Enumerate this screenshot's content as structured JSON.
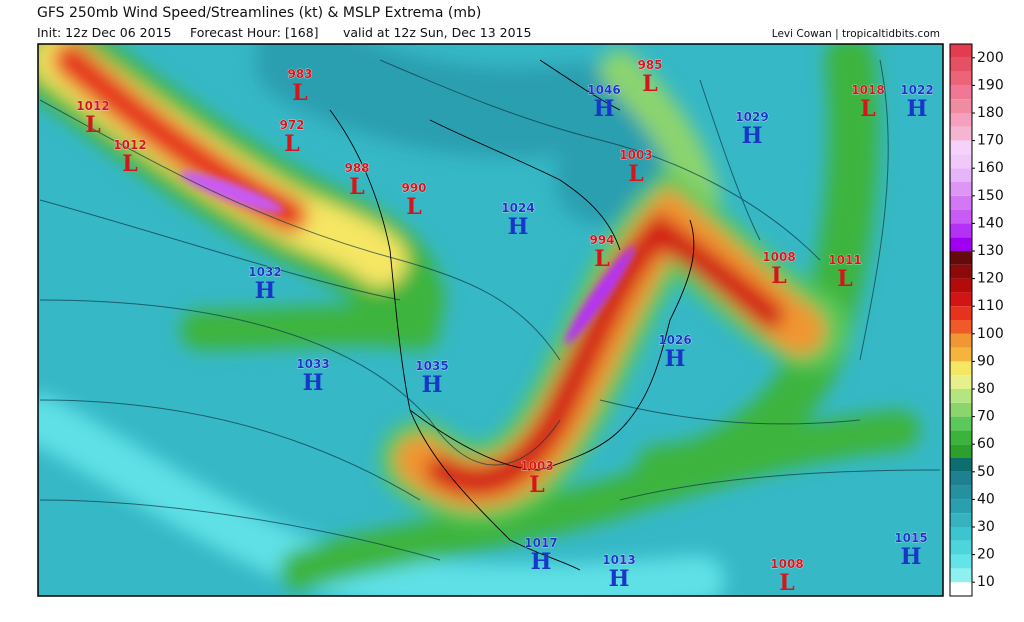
{
  "header": {
    "title": "GFS 250mb Wind Speed/Streamlines (kt) & MSLP Extrema (mb)",
    "init": "Init: 12z Dec 06 2015",
    "forecast": "Forecast Hour: [168]",
    "valid": "valid at 12z Sun, Dec 13 2015",
    "credit": "Levi Cowan | tropicaltidbits.com"
  },
  "colorbar": {
    "lim": [
      5,
      205
    ],
    "ticks": [
      10,
      20,
      30,
      40,
      50,
      60,
      70,
      80,
      90,
      100,
      110,
      120,
      130,
      140,
      150,
      160,
      170,
      180,
      190,
      200
    ],
    "colors": [
      "#ffffff",
      "#8ff0f0",
      "#62e4e8",
      "#4cd6dc",
      "#3bc6cf",
      "#36b3bf",
      "#2aa0af",
      "#2590a0",
      "#1e8090",
      "#0e6e6e",
      "#2ca02c",
      "#3cb43c",
      "#5ac85a",
      "#8cd46e",
      "#b4e67f",
      "#e6f08c",
      "#f5e664",
      "#f5b43c",
      "#f09632",
      "#f05a28",
      "#e6321e",
      "#d21414",
      "#b40a0a",
      "#8c0a0a",
      "#640a0a",
      "#a000f0",
      "#b432f5",
      "#c85af5",
      "#d278f5",
      "#dc96f5",
      "#e6b4f8",
      "#f0c8fa",
      "#f5d2fa",
      "#f5b4d2",
      "#f5a0be",
      "#f08ca0",
      "#f07896",
      "#eb6478",
      "#e65064",
      "#e13c50"
    ]
  },
  "centers": [
    {
      "value": "1012",
      "type": "L"
    },
    {
      "value": "1012",
      "type": "L"
    },
    {
      "value": "983",
      "type": "L"
    },
    {
      "value": "972",
      "type": "L"
    },
    {
      "value": "988",
      "type": "L"
    },
    {
      "value": "990",
      "type": "L"
    },
    {
      "value": "1024",
      "type": "H"
    },
    {
      "value": "1032",
      "type": "H"
    },
    {
      "value": "1033",
      "type": "H"
    },
    {
      "value": "1035",
      "type": "H"
    },
    {
      "value": "1046",
      "type": "H"
    },
    {
      "value": "985",
      "type": "L"
    },
    {
      "value": "1003",
      "type": "L"
    },
    {
      "value": "994",
      "type": "L"
    },
    {
      "value": "1029",
      "type": "H"
    },
    {
      "value": "1018",
      "type": "L"
    },
    {
      "value": "1022",
      "type": "H"
    },
    {
      "value": "1008",
      "type": "L"
    },
    {
      "value": "1011",
      "type": "L"
    },
    {
      "value": "1026",
      "type": "H"
    },
    {
      "value": "1003",
      "type": "L"
    },
    {
      "value": "1017",
      "type": "H"
    },
    {
      "value": "1013",
      "type": "H"
    },
    {
      "value": "1008",
      "type": "L"
    },
    {
      "value": "1015",
      "type": "H"
    }
  ]
}
